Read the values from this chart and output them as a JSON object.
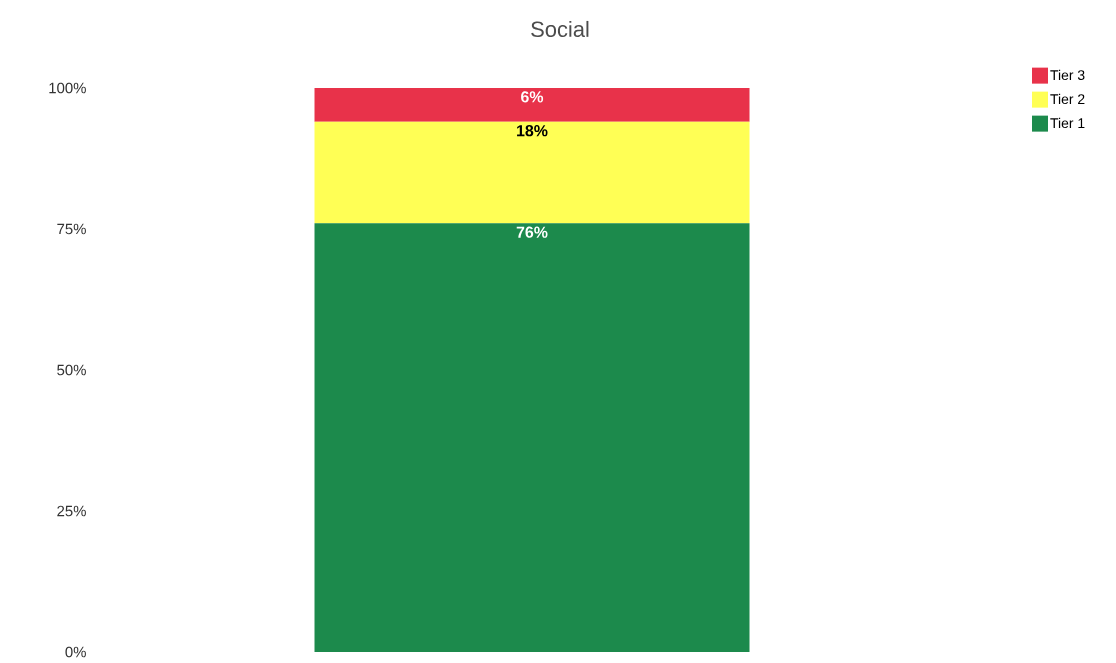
{
  "chart_data": {
    "type": "bar",
    "title": "Social",
    "stacked": true,
    "categories": [
      null
    ],
    "series": [
      {
        "name": "Tier 1",
        "color": "#1c8a4c",
        "values": [
          76
        ],
        "value_labels": [
          "76%"
        ]
      },
      {
        "name": "Tier 2",
        "color": "#ffff55",
        "values": [
          18
        ],
        "value_labels": [
          "18%"
        ]
      },
      {
        "name": "Tier 3",
        "color": "#e8324a",
        "values": [
          6
        ],
        "value_labels": [
          "6%"
        ]
      }
    ],
    "ylim": [
      0,
      100
    ],
    "yticks": [
      {
        "value": 0,
        "label": "0%"
      },
      {
        "value": 25,
        "label": "25%"
      },
      {
        "value": 50,
        "label": "50%"
      },
      {
        "value": 75,
        "label": "75%"
      },
      {
        "value": 100,
        "label": "100%"
      }
    ],
    "grid": false,
    "legend": "top right"
  }
}
